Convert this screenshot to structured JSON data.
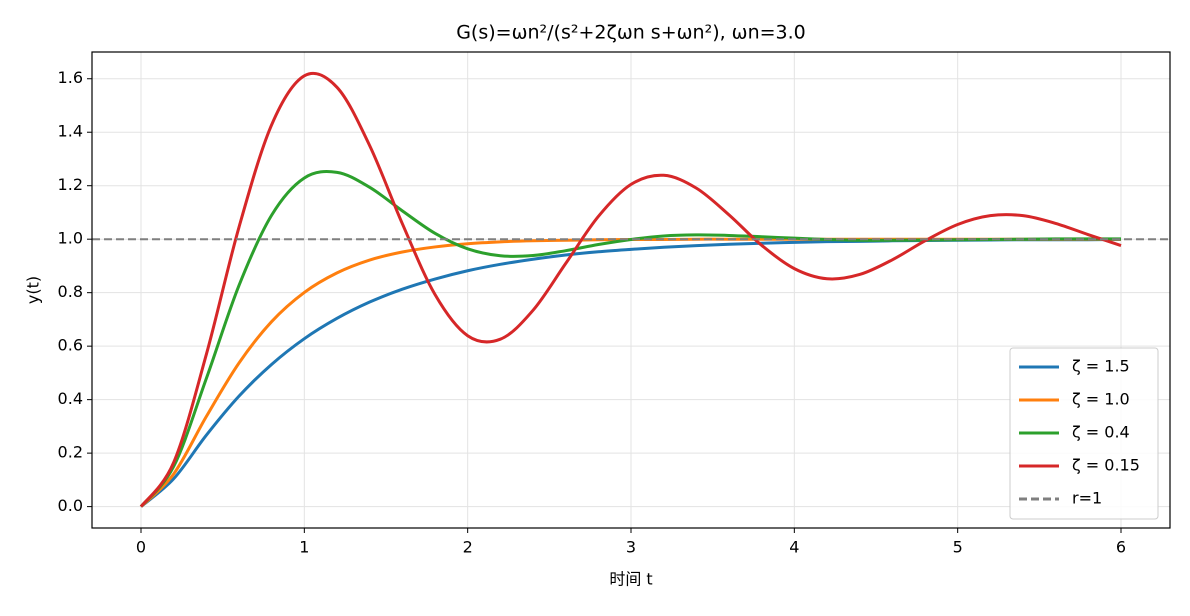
{
  "chart_data": {
    "type": "line",
    "title": "G(s)=ωn²/(s²+2ζωn s+ωn²),  ωn=3.0",
    "xlabel": "时间 t",
    "ylabel": "y(t)",
    "x": [
      0,
      0.2,
      0.4,
      0.6,
      0.8,
      1,
      1.2,
      1.4,
      1.6,
      1.8,
      2,
      2.2,
      2.4,
      2.6,
      2.8,
      3,
      3.2,
      3.4,
      3.6,
      3.8,
      4,
      4.2,
      4.4,
      4.6,
      4.8,
      5,
      5.2,
      5.4,
      5.6,
      5.8,
      6
    ],
    "series": [
      {
        "name": "ζ = 1.5",
        "color": "#1f77b4",
        "values": [
          0,
          0.104,
          0.267,
          0.413,
          0.532,
          0.628,
          0.704,
          0.765,
          0.813,
          0.851,
          0.882,
          0.906,
          0.925,
          0.941,
          0.953,
          0.962,
          0.97,
          0.976,
          0.981,
          0.985,
          0.988,
          0.991,
          0.992,
          0.994,
          0.995,
          0.996,
          0.997,
          0.998,
          0.998,
          0.998,
          0.999
        ]
      },
      {
        "name": "ζ = 1.0",
        "color": "#ff7f0e",
        "values": [
          0,
          0.122,
          0.337,
          0.537,
          0.692,
          0.801,
          0.874,
          0.922,
          0.952,
          0.971,
          0.983,
          0.99,
          0.994,
          0.996,
          0.998,
          0.999,
          0.999,
          1,
          1,
          1,
          1,
          1,
          1,
          1,
          1,
          1,
          1,
          1,
          1,
          1,
          1
        ]
      },
      {
        "name": "ζ = 0.4",
        "color": "#2ca02c",
        "values": [
          0,
          0.15,
          0.479,
          0.827,
          1.09,
          1.229,
          1.25,
          1.194,
          1.106,
          1.022,
          0.964,
          0.938,
          0.939,
          0.957,
          0.98,
          0.999,
          1.012,
          1.016,
          1.014,
          1.009,
          1.004,
          0.999,
          0.996,
          0.996,
          0.997,
          0.998,
          0.999,
          1.0,
          1.001,
          1.001,
          1.001
        ]
      },
      {
        "name": "ζ = 0.15",
        "color": "#d62728",
        "values": [
          0,
          0.165,
          0.569,
          1.045,
          1.428,
          1.611,
          1.568,
          1.35,
          1.058,
          0.793,
          0.639,
          0.626,
          0.734,
          0.909,
          1.085,
          1.205,
          1.239,
          1.191,
          1.091,
          0.977,
          0.89,
          0.852,
          0.868,
          0.923,
          0.994,
          1.055,
          1.088,
          1.088,
          1.059,
          1.017,
          0.976
        ]
      }
    ],
    "hlines": [
      {
        "name": "r=1",
        "y": 1,
        "color": "#7f7f7f",
        "style": "dashed"
      }
    ],
    "xlim": [
      -0.3,
      6.3
    ],
    "xticks": [
      0,
      1,
      2,
      3,
      4,
      5,
      6
    ],
    "ylim": [
      -0.08,
      1.7
    ],
    "yticks": [
      {
        "value": 0,
        "label": "0.0"
      },
      0.2,
      0.4,
      0.6,
      0.8,
      {
        "value": 1,
        "label": "1.0"
      },
      1.2,
      1.4,
      1.6
    ],
    "grid": true,
    "legend": "lower right"
  }
}
